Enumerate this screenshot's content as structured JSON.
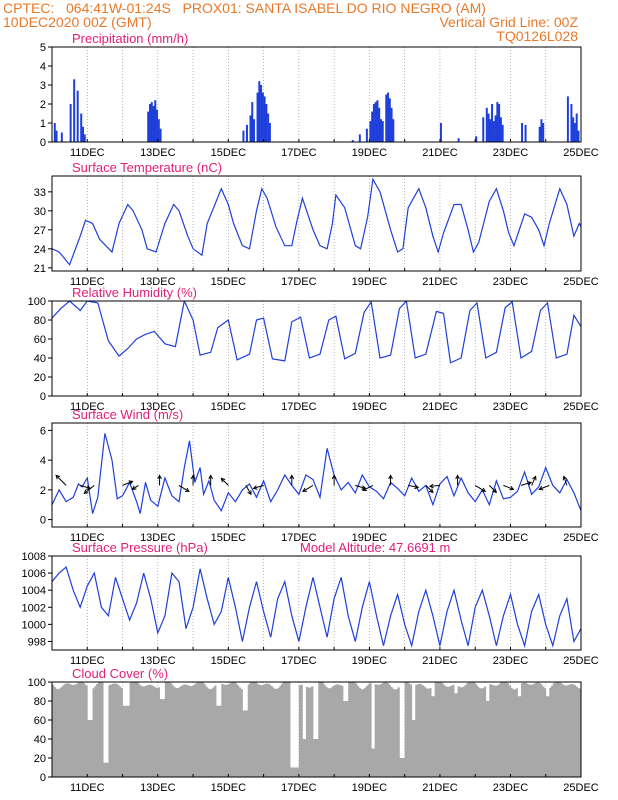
{
  "header": {
    "line1_left": "CPTEC:   064:41W-01:24S   PROX01: SANTA ISABEL DO RIO NEGRO (AM)",
    "line2_left": "10DEC2020 00Z (GMT)",
    "line2_right": "Vertical Grid Line: 00Z",
    "line3_right": "TQ0126L028"
  },
  "colors": {
    "header": "#e8792b",
    "title": "#e0207a",
    "line": "#1f3fdb",
    "cloud": "#a8a8a8",
    "grid": "#8a8a8a"
  },
  "x_axis": {
    "start": "10DEC2020 00Z",
    "end": "25DEC2020 00Z",
    "tick_labels": [
      "11DEC",
      "13DEC",
      "15DEC",
      "17DEC",
      "19DEC",
      "21DEC",
      "23DEC",
      "25DEC"
    ]
  },
  "chart_data": [
    {
      "type": "bar",
      "title": "Precipitation (mm/h)",
      "ylim": [
        0,
        5
      ],
      "yticks": [
        "0",
        "1",
        "2",
        "3",
        "4",
        "5"
      ],
      "x_unit": "days since 10DEC2020 00Z",
      "bars": [
        [
          0.05,
          1.0
        ],
        [
          0.1,
          0.6
        ],
        [
          0.25,
          0.5
        ],
        [
          0.5,
          2.0
        ],
        [
          0.6,
          3.3
        ],
        [
          0.7,
          2.7
        ],
        [
          0.8,
          1.5
        ],
        [
          0.85,
          0.8
        ],
        [
          0.9,
          0.4
        ],
        [
          2.7,
          1.6
        ],
        [
          2.75,
          2.0
        ],
        [
          2.8,
          2.1
        ],
        [
          2.85,
          1.9
        ],
        [
          2.9,
          2.2
        ],
        [
          2.95,
          1.7
        ],
        [
          3.0,
          1.2
        ],
        [
          3.05,
          0.7
        ],
        [
          5.4,
          0.6
        ],
        [
          5.5,
          0.9
        ],
        [
          5.6,
          1.4
        ],
        [
          5.65,
          2.1
        ],
        [
          5.7,
          1.2
        ],
        [
          5.8,
          2.6
        ],
        [
          5.85,
          3.2
        ],
        [
          5.9,
          3.0
        ],
        [
          5.95,
          2.6
        ],
        [
          6.0,
          2.4
        ],
        [
          6.05,
          2.0
        ],
        [
          6.1,
          1.5
        ],
        [
          6.15,
          1.0
        ],
        [
          8.5,
          0.1
        ],
        [
          8.7,
          0.4
        ],
        [
          8.9,
          0.7
        ],
        [
          9.0,
          1.1
        ],
        [
          9.05,
          1.6
        ],
        [
          9.1,
          2.0
        ],
        [
          9.15,
          2.1
        ],
        [
          9.2,
          2.2
        ],
        [
          9.25,
          1.8
        ],
        [
          9.3,
          1.2
        ],
        [
          9.35,
          1.1
        ],
        [
          9.45,
          2.5
        ],
        [
          9.5,
          2.6
        ],
        [
          9.55,
          2.3
        ],
        [
          9.6,
          1.8
        ],
        [
          9.65,
          1.2
        ],
        [
          11.0,
          1.0
        ],
        [
          11.5,
          0.2
        ],
        [
          12.0,
          0.3
        ],
        [
          12.2,
          1.3
        ],
        [
          12.3,
          1.8
        ],
        [
          12.35,
          1.5
        ],
        [
          12.4,
          1.2
        ],
        [
          12.45,
          2.0
        ],
        [
          12.5,
          1.1
        ],
        [
          12.55,
          1.4
        ],
        [
          12.6,
          2.1
        ],
        [
          12.65,
          2.0
        ],
        [
          12.7,
          1.3
        ],
        [
          12.75,
          0.9
        ],
        [
          13.3,
          1.0
        ],
        [
          13.4,
          0.9
        ],
        [
          13.8,
          0.8
        ],
        [
          13.85,
          1.2
        ],
        [
          13.9,
          1.0
        ],
        [
          14.6,
          2.4
        ],
        [
          14.7,
          2.0
        ],
        [
          14.75,
          1.3
        ],
        [
          14.8,
          1.0
        ],
        [
          14.85,
          1.5
        ],
        [
          14.9,
          0.6
        ]
      ]
    },
    {
      "type": "line",
      "title": "Surface Temperature (nC)",
      "ylim": [
        20.5,
        35.5
      ],
      "yticks": [
        "21",
        "24",
        "27",
        "30",
        "33"
      ],
      "x_unit": "days since 10DEC2020 00Z",
      "series": [
        {
          "x": [
            0,
            0.2,
            0.35,
            0.5,
            0.8,
            0.95,
            1.15,
            1.35,
            1.7,
            1.9,
            2.15,
            2.3,
            2.55,
            2.7,
            2.95,
            3.2,
            3.45,
            3.6,
            3.85,
            4.0,
            4.25,
            4.4,
            4.8,
            5.0,
            5.15,
            5.4,
            5.6,
            5.8,
            5.95,
            6.1,
            6.35,
            6.6,
            6.8,
            6.95,
            7.1,
            7.4,
            7.6,
            7.8,
            7.95,
            8.05,
            8.3,
            8.6,
            8.75,
            8.95,
            9.1,
            9.3,
            9.6,
            9.8,
            9.95,
            10.1,
            10.4,
            10.6,
            10.8,
            10.95,
            11.1,
            11.4,
            11.6,
            11.8,
            11.95,
            12.1,
            12.4,
            12.6,
            12.8,
            12.95,
            13.1,
            13.4,
            13.6,
            13.8,
            13.95,
            14.1,
            14.4,
            14.6,
            14.8,
            14.95,
            15.0
          ],
          "y": [
            24,
            23.5,
            22.5,
            21.5,
            26,
            28.5,
            28,
            25.5,
            23.5,
            28,
            31,
            30,
            27,
            24,
            23.5,
            28,
            31,
            30,
            26,
            24,
            23,
            28,
            33.5,
            31,
            28,
            24.5,
            24,
            30,
            33.5,
            32,
            27.5,
            24.5,
            24.5,
            28.5,
            32,
            27,
            24.5,
            24,
            28,
            32.5,
            30.5,
            24.5,
            24,
            29,
            35,
            33,
            27,
            23.5,
            24,
            30.5,
            33.5,
            30.5,
            26,
            23.5,
            26.5,
            31,
            31,
            27,
            23.5,
            25,
            31.5,
            33.5,
            30,
            26.5,
            24.5,
            29.5,
            29,
            27,
            24.5,
            28,
            33.5,
            31,
            26,
            28,
            27.5
          ]
        }
      ]
    },
    {
      "type": "line",
      "title": "Relative Humidity (%)",
      "ylim": [
        0,
        100
      ],
      "yticks": [
        "0",
        "20",
        "40",
        "60",
        "80",
        "100"
      ],
      "x_unit": "days since 10DEC2020 00Z",
      "series": [
        {
          "x": [
            0,
            0.25,
            0.5,
            0.8,
            1.0,
            1.3,
            1.6,
            1.9,
            2.15,
            2.4,
            2.65,
            2.9,
            3.2,
            3.5,
            3.75,
            4.0,
            4.2,
            4.5,
            4.7,
            5.0,
            5.25,
            5.6,
            5.8,
            6.0,
            6.25,
            6.6,
            6.8,
            7.05,
            7.3,
            7.6,
            7.85,
            8.05,
            8.3,
            8.6,
            8.85,
            9.05,
            9.3,
            9.6,
            9.85,
            10.05,
            10.3,
            10.6,
            10.9,
            11.1,
            11.3,
            11.6,
            11.85,
            12.05,
            12.3,
            12.6,
            12.85,
            13.05,
            13.3,
            13.6,
            13.85,
            14.05,
            14.3,
            14.6,
            14.8,
            15.0
          ],
          "y": [
            82,
            92,
            100,
            90,
            100,
            98,
            58,
            42,
            50,
            60,
            65,
            68,
            55,
            52,
            100,
            80,
            43,
            46,
            72,
            80,
            38,
            44,
            80,
            82,
            39,
            37,
            78,
            83,
            40,
            44,
            80,
            84,
            39,
            45,
            88,
            99,
            40,
            43,
            92,
            100,
            40,
            44,
            89,
            87,
            35,
            40,
            90,
            98,
            40,
            46,
            93,
            99,
            40,
            47,
            90,
            98,
            40,
            44,
            85,
            73
          ]
        }
      ]
    },
    {
      "type": "line",
      "title": "Surface Wind (m/s)",
      "ylim": [
        -0.5,
        6.5
      ],
      "yticks": [
        "0",
        "2",
        "4",
        "6"
      ],
      "x_unit": "days since 10DEC2020 00Z",
      "series": [
        {
          "x": [
            0,
            0.2,
            0.4,
            0.6,
            0.75,
            0.85,
            1.0,
            1.15,
            1.3,
            1.5,
            1.7,
            1.85,
            2.0,
            2.2,
            2.4,
            2.5,
            2.65,
            2.8,
            3.0,
            3.2,
            3.4,
            3.6,
            3.75,
            3.9,
            4.05,
            4.2,
            4.3,
            4.45,
            4.6,
            4.8,
            5.0,
            5.2,
            5.4,
            5.6,
            5.8,
            6.0,
            6.2,
            6.4,
            6.6,
            6.8,
            7.0,
            7.2,
            7.4,
            7.6,
            7.8,
            8.0,
            8.2,
            8.4,
            8.6,
            8.8,
            9.0,
            9.2,
            9.4,
            9.6,
            9.8,
            10.0,
            10.2,
            10.4,
            10.6,
            10.8,
            11.0,
            11.2,
            11.4,
            11.6,
            11.8,
            12.0,
            12.2,
            12.4,
            12.6,
            12.8,
            13.0,
            13.2,
            13.4,
            13.6,
            13.8,
            14.0,
            14.2,
            14.4,
            14.6,
            14.8,
            15.0
          ],
          "y": [
            1.0,
            2.0,
            1.2,
            1.5,
            2.4,
            2.2,
            2.8,
            0.4,
            1.5,
            5.8,
            4.0,
            1.4,
            1.6,
            2.5,
            1.2,
            0.4,
            2.5,
            1.3,
            0.9,
            2.8,
            1.6,
            1.2,
            3.5,
            5.3,
            2.5,
            3.5,
            1.7,
            2.6,
            1.3,
            0.6,
            1.8,
            1.2,
            2.0,
            2.4,
            1.5,
            2.6,
            1.2,
            2.0,
            3.0,
            2.3,
            1.7,
            3.0,
            2.7,
            1.5,
            4.8,
            3.0,
            2.0,
            2.5,
            1.8,
            3.0,
            2.2,
            1.9,
            1.4,
            2.5,
            2.1,
            1.6,
            2.8,
            1.9,
            2.3,
            1.0,
            2.4,
            2.9,
            1.6,
            2.8,
            1.8,
            1.2,
            2.0,
            1.0,
            2.6,
            1.4,
            1.5,
            1.9,
            3.2,
            1.7,
            2.2,
            3.5,
            2.3,
            1.8,
            2.7,
            1.8,
            0.6
          ]
        }
      ],
      "arrows": [
        [
          0.4,
          -1,
          -1
        ],
        [
          0.8,
          1,
          0.3
        ],
        [
          1.2,
          -1,
          0.8
        ],
        [
          2.0,
          1,
          -0.4
        ],
        [
          2.45,
          -0.6,
          0.4
        ],
        [
          3.05,
          0,
          -1
        ],
        [
          3.6,
          1,
          0.6
        ],
        [
          4.0,
          0,
          -1
        ],
        [
          4.5,
          0,
          -1
        ],
        [
          5.0,
          -0.7,
          -0.7
        ],
        [
          5.5,
          0.5,
          0.9
        ],
        [
          6.0,
          -1,
          0.3
        ],
        [
          6.8,
          0,
          -1
        ],
        [
          7.4,
          -1,
          0.6
        ],
        [
          8.0,
          0,
          -1
        ],
        [
          8.6,
          1,
          0.3
        ],
        [
          9.1,
          -1,
          0.5
        ],
        [
          9.6,
          0,
          -1
        ],
        [
          10.1,
          1,
          0.2
        ],
        [
          10.6,
          0.7,
          0.7
        ],
        [
          11.0,
          -1,
          0.1
        ],
        [
          11.5,
          0,
          -1
        ],
        [
          12.0,
          1,
          0.6
        ],
        [
          12.4,
          0.7,
          0.7
        ],
        [
          12.8,
          1,
          0.4
        ],
        [
          13.3,
          1,
          -0.3
        ],
        [
          13.6,
          0.4,
          -0.9
        ],
        [
          14.1,
          -1,
          0.4
        ],
        [
          14.6,
          -0.3,
          -0.9
        ]
      ]
    },
    {
      "type": "line",
      "title": "Surface Pressure (hPa)",
      "annotation": "Model Altitude: 47.6691 m",
      "ylim": [
        997,
        1008
      ],
      "yticks": [
        "998",
        "1000",
        "1002",
        "1004",
        "1006",
        "1008"
      ],
      "x_unit": "days since 10DEC2020 00Z",
      "series": [
        {
          "x": [
            0,
            0.2,
            0.4,
            0.6,
            0.8,
            1.0,
            1.2,
            1.4,
            1.6,
            1.8,
            2.0,
            2.2,
            2.4,
            2.6,
            2.8,
            3.0,
            3.2,
            3.4,
            3.6,
            3.8,
            4.0,
            4.2,
            4.4,
            4.6,
            4.8,
            5.0,
            5.2,
            5.4,
            5.6,
            5.8,
            6.0,
            6.2,
            6.4,
            6.6,
            6.8,
            7.0,
            7.2,
            7.4,
            7.6,
            7.8,
            8.0,
            8.2,
            8.4,
            8.6,
            8.8,
            9.0,
            9.2,
            9.4,
            9.6,
            9.8,
            10.0,
            10.2,
            10.4,
            10.6,
            10.8,
            11.0,
            11.2,
            11.4,
            11.6,
            11.8,
            12.0,
            12.2,
            12.4,
            12.6,
            12.8,
            13.0,
            13.2,
            13.4,
            13.6,
            13.8,
            14.0,
            14.2,
            14.4,
            14.6,
            14.8,
            15.0
          ],
          "y": [
            1005,
            1006,
            1006.7,
            1004,
            1002,
            1004.5,
            1006,
            1002,
            1001,
            1005.5,
            1003,
            1000.5,
            1002.5,
            1006,
            1003,
            999,
            1001,
            1006,
            1005,
            999.5,
            1002,
            1006.5,
            1003,
            1000,
            1001.5,
            1005.5,
            1002,
            998,
            1002,
            1005,
            1001.5,
            998.5,
            1003,
            1005,
            1001,
            998,
            1002,
            1005.5,
            1002,
            998.5,
            1003,
            1005.5,
            1001,
            998,
            1002,
            1005,
            1001,
            997.5,
            1001,
            1003.5,
            1000,
            997.5,
            1001.5,
            1004,
            1001,
            997.5,
            1001.5,
            1004,
            1000.5,
            997.5,
            1002,
            1004,
            1001,
            997.5,
            1001,
            1003.5,
            1000,
            997.5,
            1001.5,
            1003.5,
            1000,
            997.5,
            1001,
            1003,
            998,
            999.5
          ]
        }
      ]
    },
    {
      "type": "bar",
      "title": "Cloud Cover (%)",
      "ylim": [
        0,
        100
      ],
      "yticks": [
        "0",
        "20",
        "40",
        "60",
        "80",
        "100"
      ],
      "x_unit": "days since 10DEC2020 00Z",
      "dips": [
        [
          1.0,
          1.15,
          60
        ],
        [
          1.45,
          1.6,
          15
        ],
        [
          2.0,
          2.2,
          75
        ],
        [
          3.0,
          3.15,
          82
        ],
        [
          4.6,
          4.75,
          75
        ],
        [
          5.35,
          5.5,
          70
        ],
        [
          6.7,
          6.95,
          10
        ],
        [
          7.05,
          7.15,
          40
        ],
        [
          7.35,
          7.5,
          40
        ],
        [
          8.2,
          8.35,
          80
        ],
        [
          9.0,
          9.1,
          30
        ],
        [
          9.85,
          10.0,
          20
        ],
        [
          10.2,
          10.3,
          60
        ],
        [
          10.75,
          10.85,
          85
        ],
        [
          11.4,
          11.5,
          88
        ],
        [
          12.3,
          12.4,
          80
        ],
        [
          13.2,
          13.3,
          85
        ],
        [
          14.0,
          14.1,
          85
        ]
      ],
      "baseline": 97
    }
  ]
}
